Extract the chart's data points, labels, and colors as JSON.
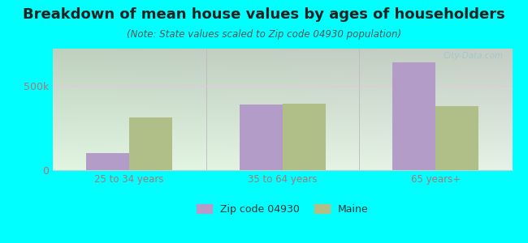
{
  "title": "Breakdown of mean house values by ages of householders",
  "subtitle": "(Note: State values scaled to Zip code 04930 population)",
  "categories": [
    "25 to 34 years",
    "35 to 64 years",
    "65 years+"
  ],
  "zip_values": [
    100000,
    390000,
    640000
  ],
  "maine_values": [
    310000,
    395000,
    380000
  ],
  "zip_color": "#b49cc9",
  "maine_color": "#b0bf87",
  "background_color": "#00ffff",
  "ylim": [
    0,
    720000
  ],
  "ytick_labels": [
    "0",
    "500k"
  ],
  "ytick_values": [
    0,
    500000
  ],
  "bar_width": 0.28,
  "title_fontsize": 13,
  "subtitle_fontsize": 8.5,
  "legend_label_zip": "Zip code 04930",
  "legend_label_maine": "Maine",
  "watermark": "City-Data.com",
  "grid_line_color": "#e0c8e0",
  "tick_label_color": "#aa7777",
  "separator_color": "#bbbbbb"
}
